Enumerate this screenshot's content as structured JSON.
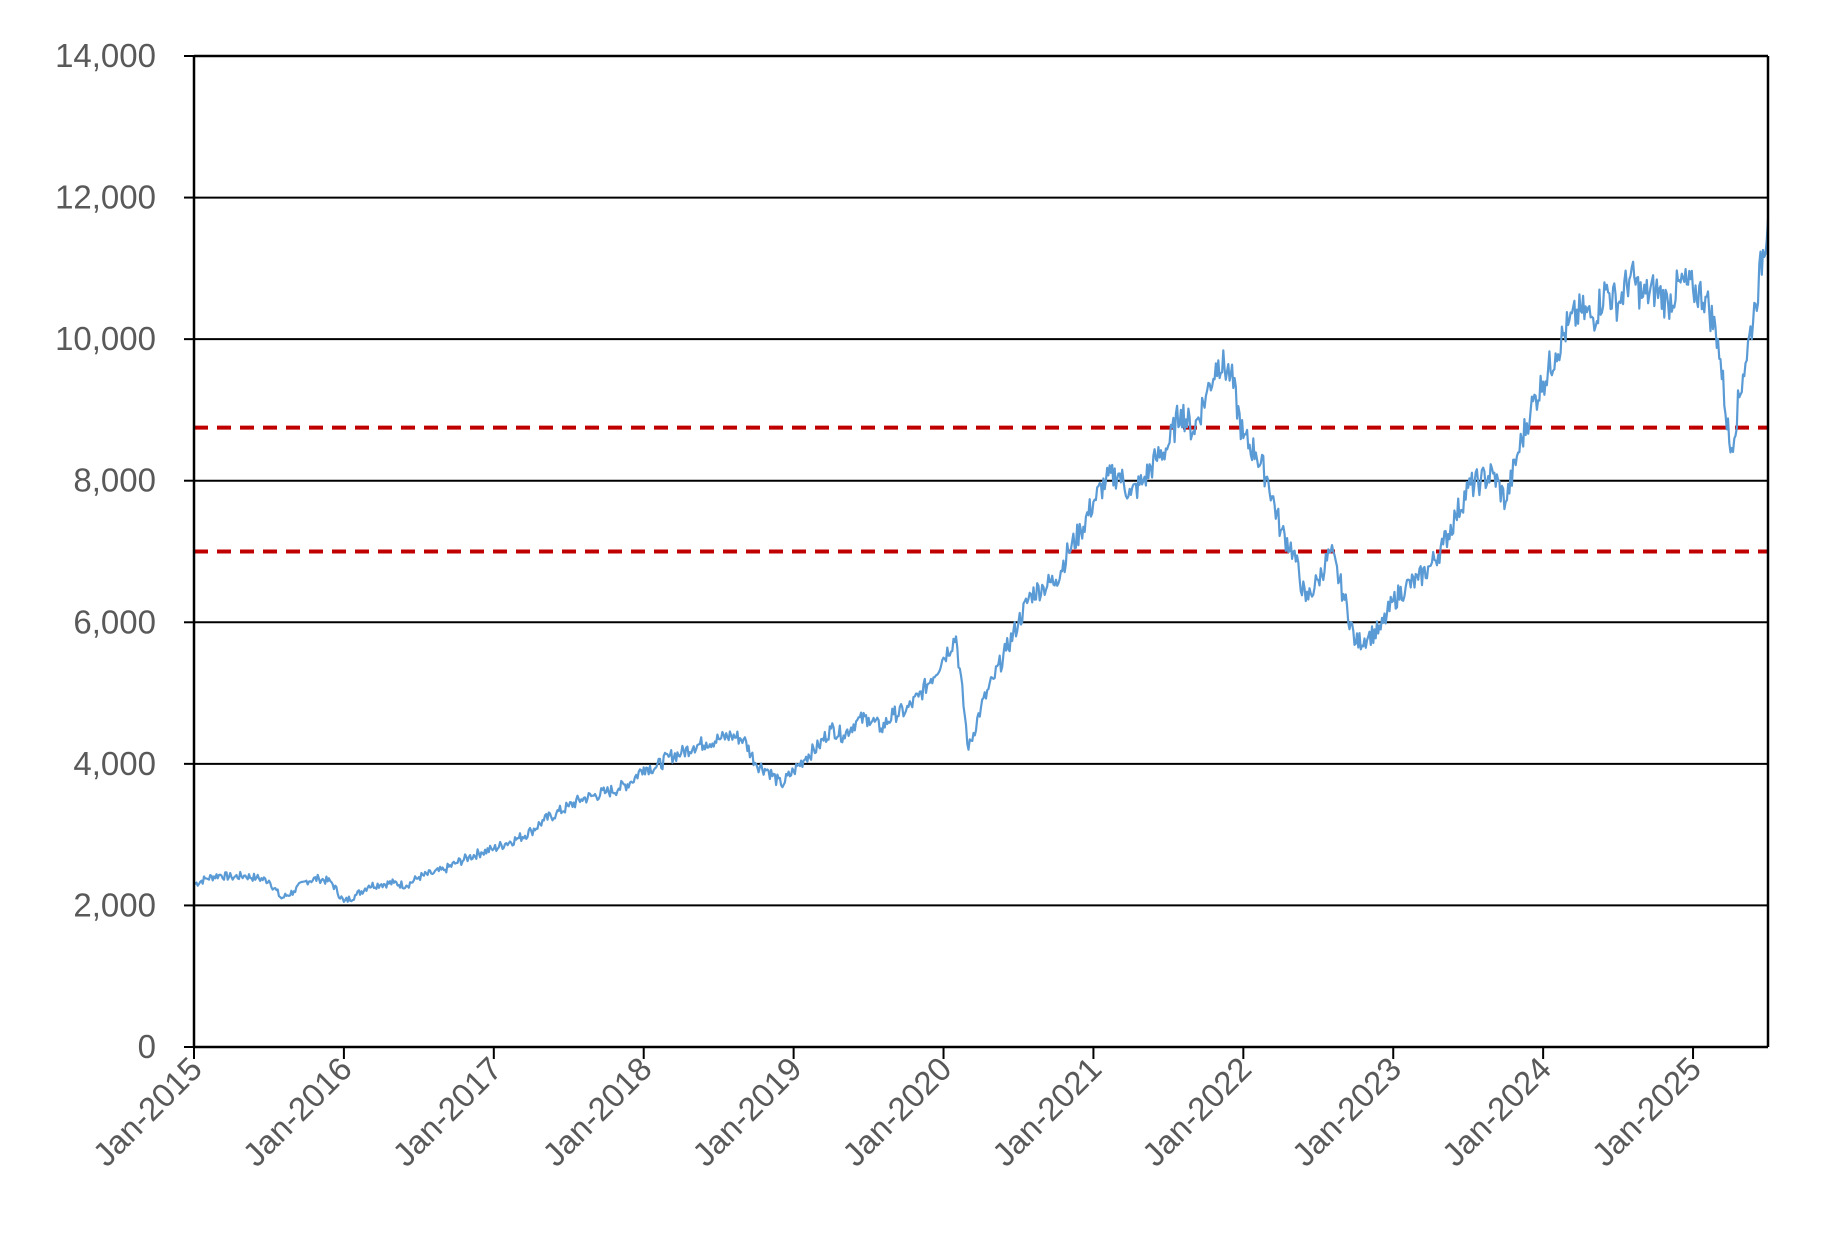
{
  "chart_data": {
    "type": "line",
    "title": "",
    "xlabel": "",
    "ylabel": "",
    "ylim": [
      0,
      14000
    ],
    "yticks": [
      0,
      2000,
      4000,
      6000,
      8000,
      10000,
      12000,
      14000
    ],
    "ytick_labels": [
      "0",
      "2,000",
      "4,000",
      "6,000",
      "8,000",
      "10,000",
      "12,000",
      "14,000"
    ],
    "xlim": [
      "2015-01",
      "2025-07"
    ],
    "xtick_labels": [
      "Jan-2015",
      "Jan-2016",
      "Jan-2017",
      "Jan-2018",
      "Jan-2019",
      "Jan-2020",
      "Jan-2021",
      "Jan-2022",
      "Jan-2023",
      "Jan-2024",
      "Jan-2025"
    ],
    "grid": "horizontal",
    "legend": "none",
    "series": [
      {
        "color": "#5b9bd5",
        "style": "solid",
        "x": [
          "2015-01",
          "2015-02",
          "2015-03",
          "2015-04",
          "2015-05",
          "2015-06",
          "2015-07",
          "2015-08",
          "2015-09",
          "2015-10",
          "2015-11",
          "2015-12",
          "2016-01",
          "2016-02",
          "2016-03",
          "2016-04",
          "2016-05",
          "2016-06",
          "2016-07",
          "2016-08",
          "2016-09",
          "2016-10",
          "2016-11",
          "2016-12",
          "2017-01",
          "2017-02",
          "2017-03",
          "2017-04",
          "2017-05",
          "2017-06",
          "2017-07",
          "2017-08",
          "2017-09",
          "2017-10",
          "2017-11",
          "2017-12",
          "2018-01",
          "2018-02",
          "2018-03",
          "2018-04",
          "2018-05",
          "2018-06",
          "2018-07",
          "2018-08",
          "2018-09",
          "2018-10",
          "2018-11",
          "2018-12",
          "2019-01",
          "2019-02",
          "2019-03",
          "2019-04",
          "2019-05",
          "2019-06",
          "2019-07",
          "2019-08",
          "2019-09",
          "2019-10",
          "2019-11",
          "2019-12",
          "2020-01",
          "2020-02",
          "2020-03",
          "2020-04",
          "2020-05",
          "2020-06",
          "2020-07",
          "2020-08",
          "2020-09",
          "2020-10",
          "2020-11",
          "2020-12",
          "2021-01",
          "2021-02",
          "2021-03",
          "2021-04",
          "2021-05",
          "2021-06",
          "2021-07",
          "2021-08",
          "2021-09",
          "2021-10",
          "2021-11",
          "2021-12",
          "2022-01",
          "2022-02",
          "2022-03",
          "2022-04",
          "2022-05",
          "2022-06",
          "2022-07",
          "2022-08",
          "2022-09",
          "2022-10",
          "2022-11",
          "2022-12",
          "2023-01",
          "2023-02",
          "2023-03",
          "2023-04",
          "2023-05",
          "2023-06",
          "2023-07",
          "2023-08",
          "2023-09",
          "2023-10",
          "2023-11",
          "2023-12",
          "2024-01",
          "2024-02",
          "2024-03",
          "2024-04",
          "2024-05",
          "2024-06",
          "2024-07",
          "2024-08",
          "2024-09",
          "2024-10",
          "2024-11",
          "2024-12",
          "2025-01",
          "2025-02",
          "2025-03",
          "2025-04",
          "2025-05",
          "2025-06",
          "2025-07"
        ],
        "values": [
          2300,
          2380,
          2430,
          2400,
          2420,
          2390,
          2350,
          2100,
          2200,
          2350,
          2380,
          2330,
          2050,
          2150,
          2280,
          2300,
          2320,
          2280,
          2400,
          2450,
          2500,
          2600,
          2680,
          2750,
          2800,
          2880,
          2950,
          3050,
          3200,
          3300,
          3400,
          3500,
          3550,
          3600,
          3650,
          3750,
          3950,
          3950,
          4100,
          4150,
          4250,
          4300,
          4350,
          4400,
          4350,
          4000,
          3900,
          3700,
          3900,
          4100,
          4250,
          4500,
          4400,
          4600,
          4650,
          4500,
          4700,
          4750,
          4950,
          5200,
          5500,
          5800,
          4200,
          4800,
          5200,
          5600,
          6000,
          6400,
          6500,
          6600,
          7000,
          7300,
          7700,
          8000,
          8100,
          7800,
          8000,
          8300,
          8500,
          9000,
          8700,
          9200,
          9700,
          9500,
          8600,
          8400,
          8000,
          7300,
          7000,
          6300,
          6600,
          7000,
          6400,
          5700,
          5800,
          5900,
          6300,
          6500,
          6600,
          6800,
          7100,
          7500,
          7900,
          8000,
          8100,
          7700,
          8400,
          9000,
          9400,
          9800,
          10200,
          10400,
          10300,
          10700,
          10500,
          10900,
          10600,
          10700,
          10500,
          10800,
          10700,
          10600,
          10000,
          8400,
          9500,
          10500,
          11700
        ]
      }
    ],
    "reference_lines": [
      {
        "y": 8750,
        "color": "#c00000",
        "style": "dashed"
      },
      {
        "y": 7000,
        "color": "#c00000",
        "style": "dashed"
      }
    ]
  }
}
